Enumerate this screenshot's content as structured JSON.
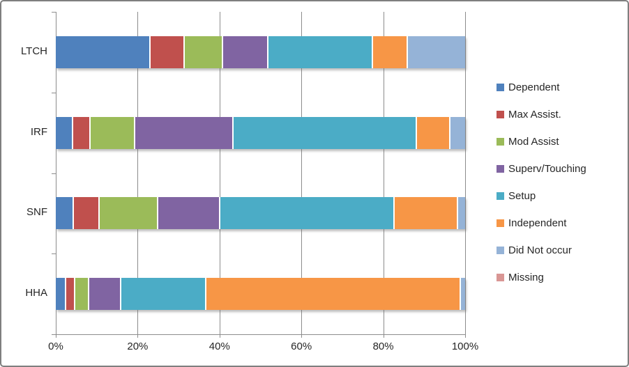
{
  "chart_data": {
    "type": "bar",
    "orientation": "horizontal",
    "stacked": true,
    "title": "",
    "xlabel": "",
    "ylabel": "",
    "grid": true,
    "legend_position": "right",
    "axis_ticks": [
      "0%",
      "20%",
      "40%",
      "60%",
      "80%",
      "100%"
    ],
    "xlim": [
      0,
      100
    ],
    "categories": [
      "LTCH",
      "IRF",
      "SNF",
      "HHA"
    ],
    "series": [
      {
        "name": "Dependent",
        "color": "#4F81BD",
        "values": [
          23.2,
          4.3,
          4.5,
          2.5
        ]
      },
      {
        "name": "Max Assist.",
        "color": "#C0504D",
        "values": [
          8.4,
          4.3,
          6.2,
          2.3
        ]
      },
      {
        "name": "Mod Assist",
        "color": "#9BBB59",
        "values": [
          9.3,
          10.8,
          14.3,
          3.4
        ]
      },
      {
        "name": "Superv/Touching",
        "color": "#8064A2",
        "values": [
          11.1,
          24.1,
          15.2,
          7.8
        ]
      },
      {
        "name": "Setup",
        "color": "#4BACC6",
        "values": [
          25.6,
          44.7,
          42.6,
          20.8
        ]
      },
      {
        "name": "Independent",
        "color": "#F79646",
        "values": [
          8.5,
          8.2,
          15.5,
          62.1
        ]
      },
      {
        "name": "Did Not occur",
        "color": "#95B3D7",
        "values": [
          13.9,
          3.6,
          1.7,
          1.1
        ]
      },
      {
        "name": "Missing",
        "color": "#D99694",
        "values": [
          0,
          0,
          0,
          0
        ]
      }
    ]
  }
}
